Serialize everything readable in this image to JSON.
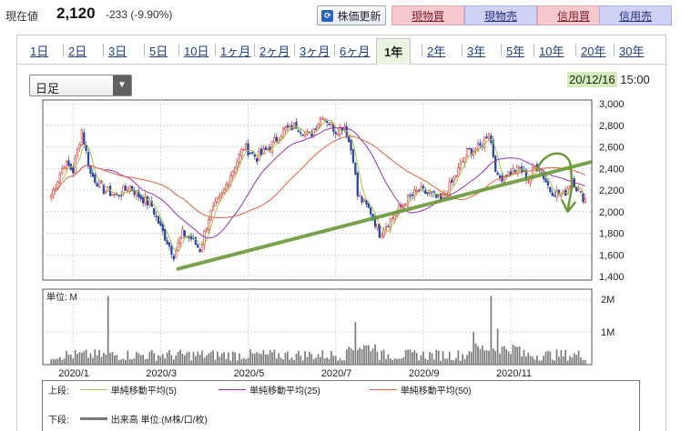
{
  "quote": {
    "label": "現在値",
    "price": "2,120",
    "change": "-233 (-9.90%)"
  },
  "toolbar": {
    "refresh_label": "株価更新",
    "refresh_icon": "refresh-icon",
    "buttons": [
      {
        "label": "現物買",
        "kind": "buy"
      },
      {
        "label": "現物売",
        "kind": "sell"
      },
      {
        "label": "信用買",
        "kind": "buy"
      },
      {
        "label": "信用売",
        "kind": "sell"
      }
    ]
  },
  "tabs": [
    "1日",
    "2日",
    "3日",
    "5日",
    "10日",
    "1ヶ月",
    "2ヶ月",
    "3ヶ月",
    "6ヶ月",
    "1年",
    "2年",
    "3年",
    "5年",
    "10年",
    "20年",
    "30年"
  ],
  "active_tab": "1年",
  "period_select": {
    "value": "日足",
    "icon": "dropdown-arrow-icon"
  },
  "as_of": {
    "date": "20/12/16",
    "time": "15:00"
  },
  "colors": {
    "up": "#d8332c",
    "down": "#2948a8",
    "ma5": "#a9c64a",
    "ma25": "#9a2fb5",
    "ma50": "#e2623a",
    "trendline": "#6a9a3a",
    "volume": "#7a7a7a"
  },
  "legend": {
    "upper_label": "上段:",
    "lower_label": "下段:",
    "ma5": "単純移動平均(5)",
    "ma25": "単純移動平均(25)",
    "ma50": "単純移動平均(50)",
    "volume": "出来高 単位:(M株/口/枚)"
  },
  "chart_data": {
    "type": "candlestick",
    "price_axis": {
      "ylim": [
        1400,
        3000
      ],
      "ticks": [
        "1,400",
        "1,600",
        "1,800",
        "2,000",
        "2,200",
        "2,400",
        "2,600",
        "2,800",
        "3,000"
      ],
      "tick_values": [
        1400,
        1600,
        1800,
        2000,
        2200,
        2400,
        2600,
        2800,
        3000
      ]
    },
    "volume_axis": {
      "unit_label": "単位: M",
      "ylim": [
        0,
        2.2
      ],
      "ticks": [
        "1M",
        "2M"
      ],
      "tick_values": [
        1,
        2
      ]
    },
    "x_labels": [
      "2020/1",
      "2020/3",
      "2020/5",
      "2020/7",
      "2020/9",
      "2020/11"
    ],
    "x_label_index": [
      10,
      50,
      90,
      130,
      170,
      210
    ],
    "n_days": 245,
    "price_path": [
      [
        0,
        2150
      ],
      [
        6,
        2450
      ],
      [
        10,
        2380
      ],
      [
        14,
        2750
      ],
      [
        18,
        2350
      ],
      [
        24,
        2200
      ],
      [
        30,
        2150
      ],
      [
        36,
        2230
      ],
      [
        40,
        2150
      ],
      [
        46,
        2050
      ],
      [
        50,
        1850
      ],
      [
        56,
        1600
      ],
      [
        60,
        1800
      ],
      [
        64,
        1750
      ],
      [
        68,
        1650
      ],
      [
        72,
        1950
      ],
      [
        78,
        2150
      ],
      [
        82,
        2350
      ],
      [
        88,
        2600
      ],
      [
        94,
        2500
      ],
      [
        100,
        2600
      ],
      [
        106,
        2750
      ],
      [
        112,
        2800
      ],
      [
        118,
        2700
      ],
      [
        124,
        2900
      ],
      [
        130,
        2750
      ],
      [
        134,
        2800
      ],
      [
        138,
        2500
      ],
      [
        140,
        2150
      ],
      [
        146,
        2000
      ],
      [
        150,
        1800
      ],
      [
        156,
        1950
      ],
      [
        162,
        2100
      ],
      [
        168,
        2200
      ],
      [
        174,
        2150
      ],
      [
        178,
        2100
      ],
      [
        184,
        2300
      ],
      [
        190,
        2550
      ],
      [
        196,
        2600
      ],
      [
        200,
        2750
      ],
      [
        204,
        2300
      ],
      [
        208,
        2350
      ],
      [
        214,
        2400
      ],
      [
        218,
        2300
      ],
      [
        222,
        2450
      ],
      [
        228,
        2200
      ],
      [
        234,
        2150
      ],
      [
        238,
        2300
      ],
      [
        242,
        2150
      ],
      [
        244,
        2120
      ]
    ],
    "volume_spikes": [
      {
        "day": 26,
        "value": 2.1
      },
      {
        "day": 139,
        "value": 1.3
      },
      {
        "day": 193,
        "value": 1.0
      },
      {
        "day": 201,
        "value": 2.1
      },
      {
        "day": 204,
        "value": 1.1
      }
    ],
    "annotations": [
      {
        "type": "trendline",
        "from": [
          58,
          1470
        ],
        "to": [
          245,
          2460
        ]
      },
      {
        "type": "arrow-down",
        "from": [
          230,
          2480
        ],
        "to": [
          236,
          2000
        ]
      }
    ]
  }
}
